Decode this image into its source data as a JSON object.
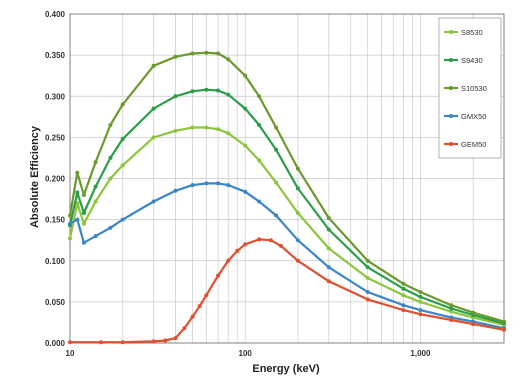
{
  "chart_data": {
    "type": "line",
    "xlabel": "Energy (keV)",
    "ylabel": "Absolute Efficiency",
    "xscale": "log",
    "xlim": [
      10,
      3000
    ],
    "ylim": [
      0,
      0.4
    ],
    "grid": true,
    "legend_position": "top-right",
    "x_ticks": [
      10,
      100,
      1000
    ],
    "x_tick_labels": [
      "10",
      "100",
      "1,000"
    ],
    "y_ticks": [
      0,
      0.05,
      0.1,
      0.15,
      0.2,
      0.25,
      0.3,
      0.35,
      0.4
    ],
    "y_tick_labels": [
      "0.000",
      "0.050",
      "0.100",
      "0.150",
      "0.200",
      "0.250",
      "0.300",
      "0.350",
      "0.400"
    ],
    "series": [
      {
        "name": "S8530",
        "color": "#8cc63e",
        "x": [
          10,
          11,
          12,
          14,
          17,
          20,
          30,
          40,
          50,
          60,
          70,
          80,
          100,
          120,
          150,
          200,
          300,
          500,
          800,
          1000,
          1500,
          2000,
          3000
        ],
        "values": [
          0.127,
          0.17,
          0.145,
          0.172,
          0.2,
          0.216,
          0.25,
          0.258,
          0.262,
          0.262,
          0.26,
          0.255,
          0.24,
          0.222,
          0.195,
          0.158,
          0.115,
          0.079,
          0.058,
          0.05,
          0.038,
          0.031,
          0.022
        ]
      },
      {
        "name": "S9430",
        "color": "#2a9e48",
        "x": [
          10,
          11,
          12,
          14,
          17,
          20,
          30,
          40,
          50,
          60,
          70,
          80,
          100,
          120,
          150,
          200,
          300,
          500,
          800,
          1000,
          1500,
          2000,
          3000
        ],
        "values": [
          0.143,
          0.183,
          0.158,
          0.19,
          0.225,
          0.248,
          0.285,
          0.3,
          0.306,
          0.308,
          0.307,
          0.302,
          0.285,
          0.265,
          0.235,
          0.188,
          0.138,
          0.092,
          0.066,
          0.056,
          0.042,
          0.034,
          0.024
        ]
      },
      {
        "name": "S10530",
        "color": "#6a9a2e",
        "x": [
          10,
          11,
          12,
          14,
          17,
          20,
          30,
          40,
          50,
          60,
          70,
          80,
          100,
          120,
          150,
          200,
          300,
          500,
          800,
          1000,
          1500,
          2000,
          3000
        ],
        "values": [
          0.155,
          0.207,
          0.18,
          0.22,
          0.265,
          0.29,
          0.337,
          0.348,
          0.352,
          0.353,
          0.352,
          0.345,
          0.325,
          0.3,
          0.262,
          0.212,
          0.152,
          0.1,
          0.072,
          0.062,
          0.046,
          0.037,
          0.026
        ]
      },
      {
        "name": "GMX50",
        "color": "#3a86c8",
        "x": [
          10,
          11,
          12,
          14,
          17,
          20,
          30,
          40,
          50,
          60,
          70,
          80,
          100,
          120,
          150,
          200,
          300,
          500,
          800,
          1000,
          1500,
          2000,
          3000
        ],
        "values": [
          0.145,
          0.15,
          0.122,
          0.13,
          0.14,
          0.15,
          0.172,
          0.185,
          0.192,
          0.194,
          0.194,
          0.192,
          0.184,
          0.172,
          0.155,
          0.125,
          0.092,
          0.062,
          0.046,
          0.04,
          0.031,
          0.026,
          0.018
        ]
      },
      {
        "name": "GEM50",
        "color": "#e05030",
        "x": [
          10,
          15,
          20,
          30,
          35,
          40,
          45,
          50,
          55,
          60,
          70,
          80,
          90,
          100,
          120,
          140,
          160,
          200,
          300,
          500,
          800,
          1000,
          1500,
          2000,
          3000
        ],
        "values": [
          0.001,
          0.001,
          0.001,
          0.002,
          0.003,
          0.006,
          0.018,
          0.032,
          0.045,
          0.058,
          0.082,
          0.1,
          0.112,
          0.12,
          0.126,
          0.125,
          0.118,
          0.1,
          0.075,
          0.053,
          0.04,
          0.035,
          0.028,
          0.023,
          0.016
        ]
      }
    ]
  }
}
